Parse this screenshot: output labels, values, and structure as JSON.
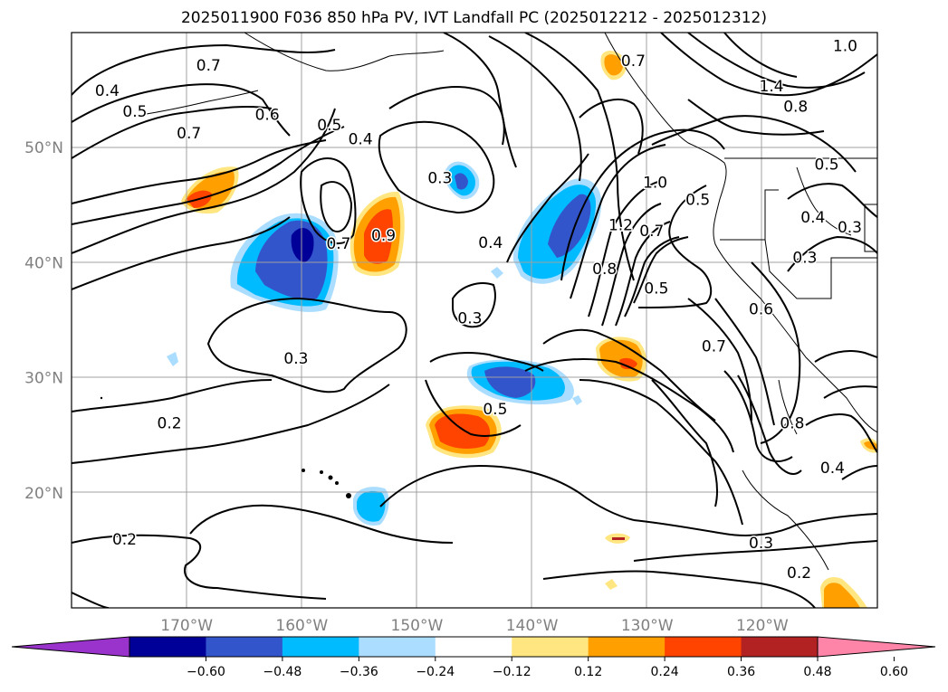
{
  "title": "2025011900 F036 850 hPa PV, IVT Landfall PC (2025012212 - 2025012312)",
  "lat_labels": [
    {
      "text": "50°N",
      "lat": 50
    },
    {
      "text": "40°N",
      "lat": 40
    },
    {
      "text": "30°N",
      "lat": 30
    },
    {
      "text": "20°N",
      "lat": 20
    }
  ],
  "lon_labels": [
    {
      "text": "170°W",
      "lon": -170
    },
    {
      "text": "160°W",
      "lon": -160
    },
    {
      "text": "150°W",
      "lon": -150
    },
    {
      "text": "140°W",
      "lon": -140
    },
    {
      "text": "130°W",
      "lon": -130
    },
    {
      "text": "120°W",
      "lon": -120
    }
  ],
  "colorbar": {
    "ticks": [
      "−0.60",
      "−0.48",
      "−0.36",
      "−0.24",
      "−0.12",
      "0.12",
      "0.24",
      "0.36",
      "0.48",
      "0.60"
    ],
    "colors": [
      "#9933cc",
      "#000099",
      "#3355cc",
      "#00bbff",
      "#aaddff",
      "#ffffff",
      "#ffe680",
      "#ffa000",
      "#ff4400",
      "#b22222",
      "#ff85a8"
    ]
  },
  "contour_labels": [
    {
      "text": "0.7",
      "lon": -168.1,
      "lat": 57.1
    },
    {
      "text": "0.4",
      "lon": -176.9,
      "lat": 54.9
    },
    {
      "text": "0.5",
      "lon": -174.5,
      "lat": 53.1
    },
    {
      "text": "0.7",
      "lon": -169.8,
      "lat": 51.2
    },
    {
      "text": "0.6",
      "lon": -163.0,
      "lat": 52.8
    },
    {
      "text": "0.5",
      "lon": -157.6,
      "lat": 51.9
    },
    {
      "text": "0.4",
      "lon": -154.9,
      "lat": 50.7
    },
    {
      "text": "0.3",
      "lon": -148.0,
      "lat": 47.3
    },
    {
      "text": "0.9",
      "lon": -152.9,
      "lat": 42.3
    },
    {
      "text": "0.7",
      "lon": -156.8,
      "lat": 41.6
    },
    {
      "text": "0.4",
      "lon": -143.6,
      "lat": 41.7
    },
    {
      "text": "0.3",
      "lon": -145.4,
      "lat": 35.1
    },
    {
      "text": "0.3",
      "lon": -160.5,
      "lat": 31.6
    },
    {
      "text": "0.5",
      "lon": -143.2,
      "lat": 27.2
    },
    {
      "text": "0.2",
      "lon": -171.5,
      "lat": 26.0
    },
    {
      "text": "0.2",
      "lon": -175.4,
      "lat": 15.9
    },
    {
      "text": "0.7",
      "lon": -131.2,
      "lat": 57.5
    },
    {
      "text": "1.2",
      "lon": -132.3,
      "lat": 43.2
    },
    {
      "text": "1.0",
      "lon": -129.3,
      "lat": 46.9
    },
    {
      "text": "0.7",
      "lon": -129.6,
      "lat": 42.7
    },
    {
      "text": "0.8",
      "lon": -133.7,
      "lat": 39.4
    },
    {
      "text": "0.5",
      "lon": -125.6,
      "lat": 45.4
    },
    {
      "text": "0.5",
      "lon": -129.2,
      "lat": 37.7
    },
    {
      "text": "1.4",
      "lon": -119.2,
      "lat": 55.3
    },
    {
      "text": "0.8",
      "lon": -117.1,
      "lat": 53.5
    },
    {
      "text": "1.0",
      "lon": -112.8,
      "lat": 58.8
    },
    {
      "text": "0.5",
      "lon": -114.4,
      "lat": 48.5
    },
    {
      "text": "0.4",
      "lon": -115.6,
      "lat": 43.9
    },
    {
      "text": "0.3",
      "lon": -112.4,
      "lat": 43.0
    },
    {
      "text": "0.3",
      "lon": -116.3,
      "lat": 40.4
    },
    {
      "text": "0.6",
      "lon": -120.1,
      "lat": 35.9
    },
    {
      "text": "0.7",
      "lon": -124.2,
      "lat": 32.7
    },
    {
      "text": "0.8",
      "lon": -117.4,
      "lat": 26.0
    },
    {
      "text": "0.4",
      "lon": -113.9,
      "lat": 22.1
    },
    {
      "text": "0.3",
      "lon": -120.1,
      "lat": 15.6
    },
    {
      "text": "0.2",
      "lon": -116.8,
      "lat": 13.0
    }
  ]
}
